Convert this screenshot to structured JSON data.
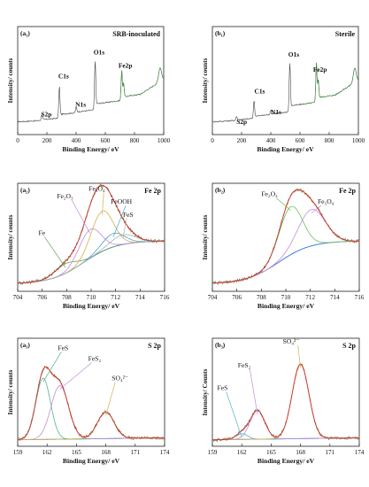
{
  "chart_data": [
    {
      "id": "a1",
      "type": "line",
      "panel_label": "(a₁)",
      "title": "SRB-inoculated",
      "xlabel": "Binding Energy/ eV",
      "ylabel": "Intensity/ counts",
      "xlim": [
        0,
        1000
      ],
      "xticks": [
        "0",
        "200",
        "400",
        "600",
        "800",
        "1000"
      ],
      "peaks": [
        {
          "name": "S2p",
          "x": 165,
          "height": 0.06
        },
        {
          "name": "C1s",
          "x": 285,
          "height": 0.32
        },
        {
          "name": "N1s",
          "x": 400,
          "height": 0.06
        },
        {
          "name": "O1s",
          "x": 530,
          "height": 0.52
        },
        {
          "name": "Fe2p",
          "x": 712,
          "height": 0.3
        }
      ],
      "annotations": [
        {
          "text": "S2p",
          "x": 160,
          "y": 0.17
        },
        {
          "text": "C1s",
          "x": 278,
          "y": 0.52
        },
        {
          "text": "N1s",
          "x": 395,
          "y": 0.26
        },
        {
          "text": "O1s",
          "x": 520,
          "y": 0.74
        },
        {
          "text": "Fe2p",
          "x": 690,
          "y": 0.62
        }
      ]
    },
    {
      "id": "b1",
      "type": "line",
      "panel_label": "(b₁)",
      "title": "Sterile",
      "xlabel": "Binding Energy/ eV",
      "ylabel": "Intensity/ counts",
      "xlim": [
        0,
        1000
      ],
      "xticks": [
        "0",
        "200",
        "400",
        "600",
        "800",
        "1000"
      ],
      "peaks": [
        {
          "name": "S2p",
          "x": 165,
          "height": 0.04
        },
        {
          "name": "C1s",
          "x": 285,
          "height": 0.18
        },
        {
          "name": "N1s",
          "x": 400,
          "height": 0.05
        },
        {
          "name": "O1s",
          "x": 530,
          "height": 0.52
        },
        {
          "name": "Fe2p",
          "x": 712,
          "height": 0.4
        }
      ],
      "annotations": [
        {
          "text": "S2p",
          "x": 165,
          "y": 0.1
        },
        {
          "text": "C1s",
          "x": 288,
          "y": 0.38
        },
        {
          "text": "N1s",
          "x": 400,
          "y": 0.19
        },
        {
          "text": "O1s",
          "x": 520,
          "y": 0.72
        },
        {
          "text": "Fe2p",
          "x": 690,
          "y": 0.58
        }
      ]
    },
    {
      "id": "a2",
      "type": "line",
      "panel_label": "(a₂)",
      "title": "Fe 2p",
      "xlabel": "Binding Energy/ eV",
      "ylabel": "Intensity/ counts",
      "xlim": [
        704,
        716
      ],
      "xticks": [
        "704",
        "706",
        "708",
        "710",
        "712",
        "714",
        "716"
      ],
      "components": [
        {
          "name": "Fe",
          "center": 707.9,
          "width": 0.9,
          "amp": 0.1,
          "color": "#5aa55a"
        },
        {
          "name": "Fe₂O₃",
          "center": 709.9,
          "width": 0.9,
          "amp": 0.3,
          "color": "#c48bd8"
        },
        {
          "name": "Fe₃O₄",
          "center": 710.9,
          "width": 0.9,
          "amp": 0.42,
          "color": "#d2b14a"
        },
        {
          "name": "FeOOH",
          "center": 711.8,
          "width": 0.9,
          "amp": 0.14,
          "color": "#4aa3c8"
        },
        {
          "name": "FeS",
          "center": 712.6,
          "width": 1.0,
          "amp": 0.1,
          "color": "#b0b0b0"
        }
      ],
      "annotations": [
        {
          "text": "Fe₂O₃",
          "x": 707.2,
          "y": 0.86
        },
        {
          "text": "Fe₃O₄",
          "x": 709.8,
          "y": 0.93
        },
        {
          "text": "FeOOH",
          "x": 711.6,
          "y": 0.81
        },
        {
          "text": "FeS",
          "x": 712.6,
          "y": 0.69
        },
        {
          "text": "Fe",
          "x": 705.7,
          "y": 0.52
        }
      ]
    },
    {
      "id": "b2",
      "type": "line",
      "panel_label": "(b₂)",
      "title": "Fe 2p",
      "xlabel": "Binding Energy/ eV",
      "ylabel": "Intensity/ counts",
      "xlim": [
        704,
        716
      ],
      "xticks": [
        "704",
        "706",
        "708",
        "710",
        "712",
        "714",
        "716"
      ],
      "components": [
        {
          "name": "Fe₂O₃",
          "center": 710.4,
          "width": 0.95,
          "amp": 0.5,
          "color": "#6bbf59"
        },
        {
          "name": "Fe₃O₄",
          "center": 712.1,
          "width": 1.1,
          "amp": 0.38,
          "color": "#c48bd8"
        }
      ],
      "annotations": [
        {
          "text": "Fe₂O₃",
          "x": 708.0,
          "y": 0.88
        },
        {
          "text": "Fe₃O₄",
          "x": 712.6,
          "y": 0.81
        }
      ]
    },
    {
      "id": "a3",
      "type": "line",
      "panel_label": "(a₃)",
      "title": "S 2p",
      "xlabel": "Binding Energy/ eV",
      "ylabel": "Intensity/ counts",
      "xlim": [
        159,
        174
      ],
      "xticks": [
        "159",
        "162",
        "165",
        "168",
        "171",
        "174"
      ],
      "components": [
        {
          "name": "FeS",
          "center": 161.6,
          "width": 0.75,
          "amp": 0.64,
          "color": "#4fb38a"
        },
        {
          "name": "FeS₂",
          "center": 163.3,
          "width": 0.9,
          "amp": 0.56,
          "color": "#c48bd8"
        },
        {
          "name": "SO₄²⁻",
          "center": 168.0,
          "width": 0.85,
          "amp": 0.28,
          "color": "#d2b14a"
        }
      ],
      "annotations": [
        {
          "text": "FeS",
          "x": 163.1,
          "y": 0.89
        },
        {
          "text": "FeS₂",
          "x": 166.2,
          "y": 0.79
        },
        {
          "text": "SO₄²⁻",
          "x": 168.6,
          "y": 0.61
        }
      ]
    },
    {
      "id": "b3",
      "type": "line",
      "panel_label": "(b₃)",
      "title": "S 2p",
      "xlabel": "Binding Energy/ eV",
      "ylabel": "Intensity/ Counts",
      "xlim": [
        159,
        174
      ],
      "xticks": [
        "159",
        "162",
        "165",
        "168",
        "171",
        "174"
      ],
      "components": [
        {
          "name": "FeS",
          "center": 162.0,
          "width": 0.6,
          "amp": 0.06,
          "color": "#4fb3c8"
        },
        {
          "name": "FeS₂",
          "center": 163.6,
          "width": 0.75,
          "amp": 0.3,
          "color": "#c48bd8"
        },
        {
          "name": "SO₄²⁻",
          "center": 168.0,
          "width": 0.85,
          "amp": 0.78,
          "color": "#d2b14a"
        }
      ],
      "annotations": [
        {
          "text": "FeS",
          "x": 159.5,
          "y": 0.52
        },
        {
          "text": "FeS₂",
          "x": 161.6,
          "y": 0.73
        },
        {
          "text": "SO₄²⁻",
          "x": 166.2,
          "y": 0.95
        }
      ]
    }
  ]
}
